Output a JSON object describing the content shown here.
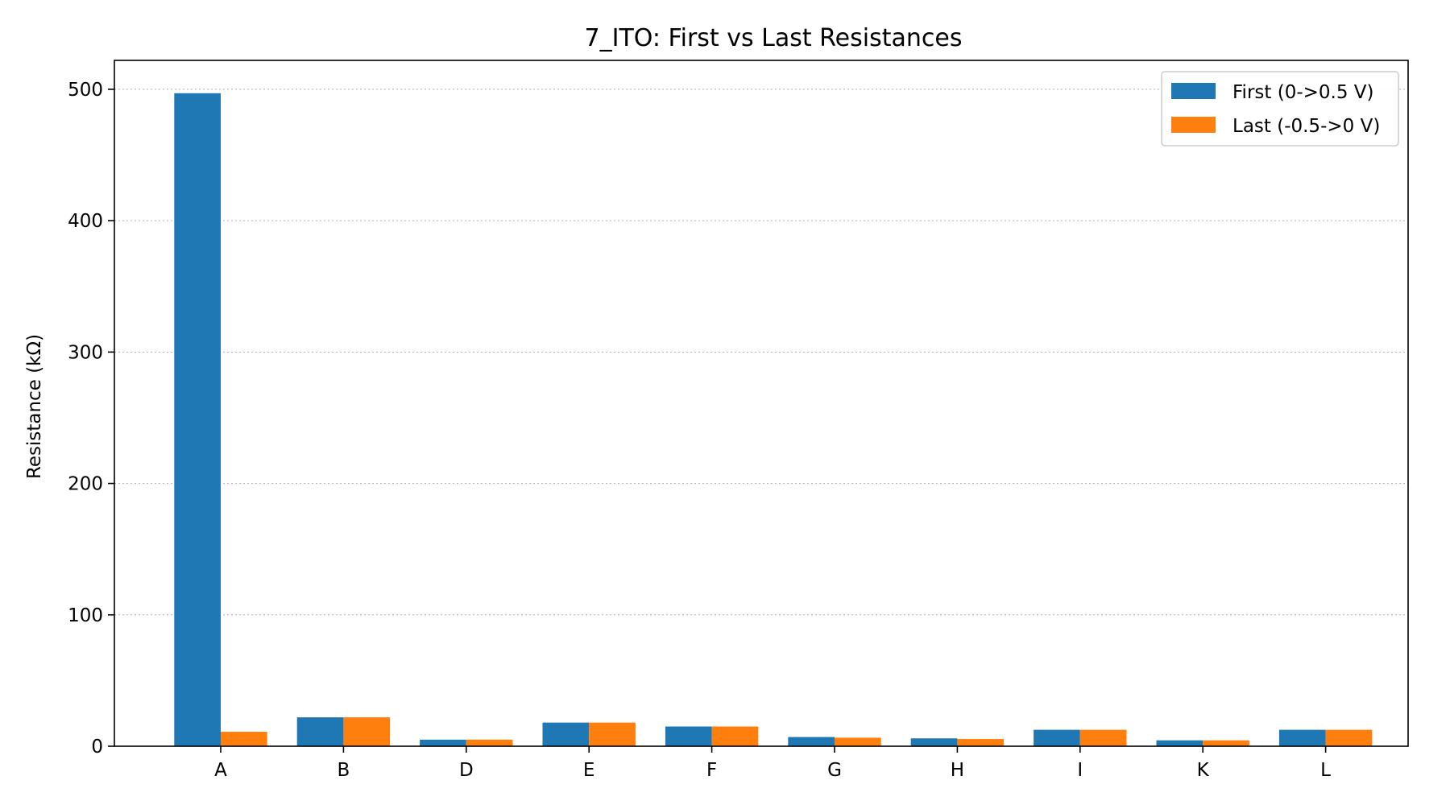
{
  "chart_data": {
    "type": "bar",
    "title": "7_ITO: First vs Last Resistances",
    "xlabel": "",
    "ylabel": "Resistance (kΩ)",
    "categories": [
      "A",
      "B",
      "D",
      "E",
      "F",
      "G",
      "H",
      "I",
      "K",
      "L"
    ],
    "series": [
      {
        "name": "First (0->0.5 V)",
        "color": "#1f77b4",
        "values": [
          497,
          22,
          5,
          18,
          15,
          7,
          6,
          12.5,
          4.5,
          12.5
        ]
      },
      {
        "name": "Last (-0.5->0 V)",
        "color": "#ff7f0e",
        "values": [
          11,
          22,
          5,
          18,
          15,
          6.5,
          5.5,
          12.5,
          4.5,
          12.5
        ]
      }
    ],
    "ylim": [
      0,
      522
    ],
    "yticks": [
      0,
      100,
      200,
      300,
      400,
      500
    ],
    "grid": true,
    "legend_position": "top-right"
  }
}
